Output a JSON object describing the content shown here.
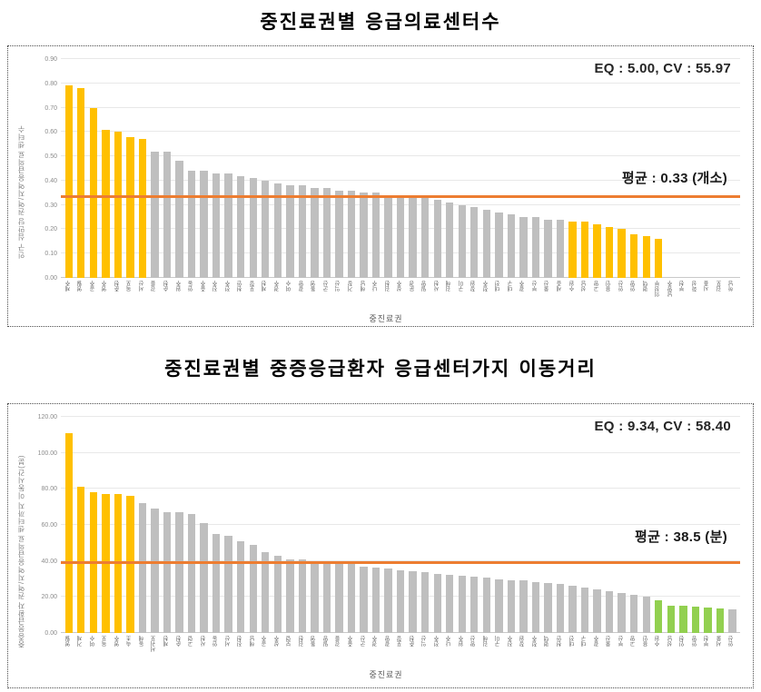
{
  "colors": {
    "yellow_highlight": "#FFC000",
    "gray_normal": "#BFBFBF",
    "green_good": "#92D050",
    "average_line": "#ED7D31",
    "color_map": {
      "y": "#FFC000",
      "n": "#BFBFBF",
      "g": "#92D050"
    }
  },
  "chart_data": [
    {
      "type": "bar",
      "title": "중진료권별 응급의료센터수",
      "eq_cv_label": "EQ : 5.00, CV : 55.97",
      "eq": 5.0,
      "cv": 55.97,
      "average": 0.33,
      "average_label": "평균 : 0.33 (개소)",
      "ylabel": "인구 십만당 권역/지역응급의료 센터수",
      "xlabel": "중진료권",
      "ylim": [
        0,
        0.9
      ],
      "yticks": [
        "0.00",
        "0.10",
        "0.20",
        "0.30",
        "0.40",
        "0.50",
        "0.60",
        "0.70",
        "0.80",
        "0.90"
      ],
      "grid": true,
      "legend": "none",
      "categories": [
        "제주",
        "영월",
        "공주",
        "영주",
        "춘천",
        "목포",
        "서산",
        "강릉",
        "순천",
        "원주",
        "안동",
        "충주",
        "진주",
        "전주",
        "천안",
        "포항",
        "제천",
        "경주",
        "여수",
        "광양",
        "통영",
        "군산",
        "익산",
        "거창",
        "해남",
        "나주",
        "김천",
        "상주",
        "문경",
        "밀양",
        "사천",
        "김해",
        "구미",
        "창원",
        "청주",
        "대전",
        "대구",
        "광주",
        "부산",
        "울산",
        "세종",
        "수원",
        "성남",
        "고양",
        "용인",
        "안산",
        "안양",
        "평택",
        "의정부",
        "남양주",
        "부천",
        "화성",
        "시흥",
        "김포",
        "하남"
      ],
      "values": [
        0.79,
        0.78,
        0.7,
        0.61,
        0.6,
        0.58,
        0.57,
        0.52,
        0.52,
        0.48,
        0.44,
        0.44,
        0.43,
        0.43,
        0.42,
        0.41,
        0.4,
        0.39,
        0.38,
        0.38,
        0.37,
        0.37,
        0.36,
        0.36,
        0.35,
        0.35,
        0.34,
        0.34,
        0.33,
        0.33,
        0.32,
        0.31,
        0.3,
        0.29,
        0.28,
        0.27,
        0.26,
        0.25,
        0.25,
        0.24,
        0.24,
        0.23,
        0.23,
        0.22,
        0.21,
        0.2,
        0.18,
        0.17,
        0.16,
        0,
        0,
        0,
        0,
        0,
        0
      ],
      "bar_colors": "yyyyyyynnnnnnnnnnnnnnnnnnnnnnnnnnnnnnnnnnyyyyyyyynnnnnn"
    },
    {
      "type": "bar",
      "title": "중진료권별 중증응급환자 응급센터가지 이동거리",
      "eq_cv_label": "EQ : 9.34, CV : 58.40",
      "eq": 9.34,
      "cv": 58.4,
      "average": 38.5,
      "average_label": "평균 : 38.5 (분)",
      "ylabel": "중증응급환자 권역/지역응급의료 센터까지 이동시간(분)",
      "xlabel": "중진료권",
      "ylim": [
        0,
        120
      ],
      "yticks": [
        "0.00",
        "20.00",
        "40.00",
        "60.00",
        "80.00",
        "100.00",
        "120.00"
      ],
      "grid": true,
      "legend": "none",
      "categories": [
        "영월",
        "거제",
        "여수",
        "목포",
        "영주",
        "속초",
        "동해",
        "서귀포",
        "제천",
        "순천",
        "고령",
        "사천",
        "안동",
        "서산",
        "진천",
        "해남",
        "공주",
        "상주",
        "보령",
        "김천",
        "통영",
        "밀양",
        "강릉",
        "충주",
        "군산",
        "경주",
        "광양",
        "포항",
        "춘천",
        "익산",
        "전주",
        "나주",
        "원주",
        "양산",
        "김해",
        "구미",
        "진주",
        "창원",
        "청주",
        "평택",
        "천안",
        "대전",
        "대구",
        "광주",
        "울산",
        "부산",
        "고양",
        "용인",
        "수원",
        "성남",
        "인천",
        "안양",
        "부천",
        "서울",
        "안산"
      ],
      "values": [
        111,
        81,
        78,
        77,
        77,
        76,
        72,
        69,
        67,
        67,
        66,
        61,
        55,
        54,
        51,
        49,
        45,
        43,
        41,
        41,
        40,
        40,
        39,
        39,
        37,
        36.5,
        36,
        35,
        34.5,
        34,
        33,
        32.5,
        32,
        31.5,
        31,
        30,
        29.5,
        29,
        28,
        27.5,
        27,
        26,
        25,
        24,
        23,
        22,
        21,
        20,
        18,
        15,
        15,
        14.5,
        14,
        13.5,
        13
      ],
      "bar_colors": "yyyyyynnnnnnnnnnnnnnnnnnnnnnnnnnnnnnnnnnnnnnnnnngggggg"
    }
  ]
}
